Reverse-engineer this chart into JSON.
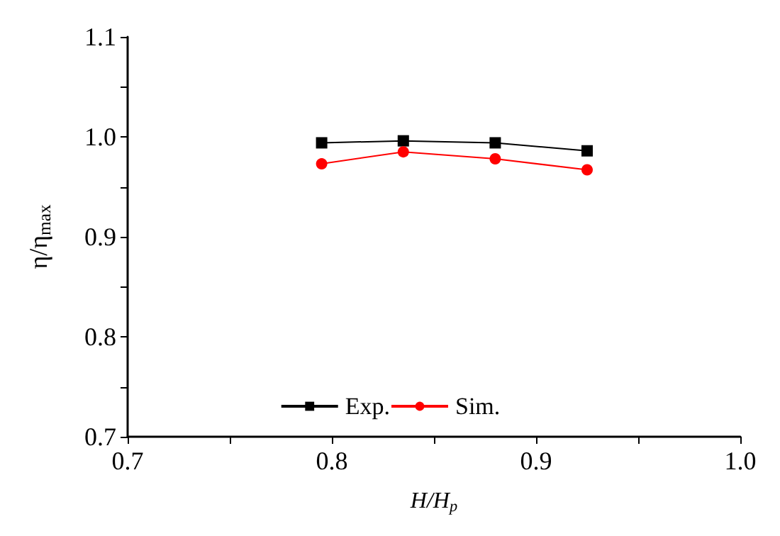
{
  "chart_data": {
    "type": "line",
    "xlabel": "H/H$_{p}$",
    "ylabel": "η/η$_{max}$",
    "x": [
      0.795,
      0.835,
      0.88,
      0.925
    ],
    "series": [
      {
        "name": "Exp.",
        "color": "#000000",
        "marker": "square",
        "values": [
          0.994,
          0.996,
          0.994,
          0.986
        ]
      },
      {
        "name": "Sim.",
        "color": "#ff0000",
        "marker": "circle",
        "values": [
          0.973,
          0.985,
          0.978,
          0.967
        ]
      }
    ],
    "xlim": [
      0.7,
      1.0
    ],
    "xticks": [
      0.7,
      {
        "value": 0.75,
        "label": null
      },
      0.8,
      {
        "value": 0.85,
        "label": null
      },
      0.9,
      {
        "value": 0.95,
        "label": null
      },
      {
        "value": 1,
        "label": "1.0"
      }
    ],
    "ylim": [
      0.7,
      1.1
    ],
    "yticks": [
      0.7,
      {
        "value": 0.75,
        "label": null
      },
      0.8,
      {
        "value": 0.85,
        "label": null
      },
      0.9,
      {
        "value": 0.95,
        "label": null
      },
      {
        "value": 1,
        "label": "1.0"
      },
      {
        "value": 1.05,
        "label": null
      },
      1.1
    ],
    "grid": false,
    "legend": "bottom",
    "line_style": "solid"
  }
}
